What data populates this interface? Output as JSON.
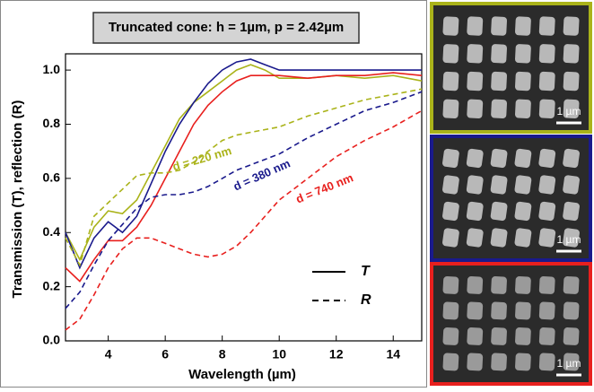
{
  "chart_data": {
    "type": "line",
    "title": "Truncated cone: h = 1µm, p = 2.42µm",
    "x_label": "Wavelength (µm)",
    "y_label": "Transmission (T), reflection (R)",
    "x": [
      2.5,
      3,
      3.5,
      4,
      4.5,
      5,
      5.5,
      6,
      6.5,
      7,
      7.5,
      8,
      8.5,
      9,
      9.5,
      10,
      11,
      12,
      13,
      14,
      15
    ],
    "series": [
      {
        "color": "#aab31a",
        "dash": "solid",
        "values": [
          0.4,
          0.3,
          0.42,
          0.48,
          0.47,
          0.52,
          0.62,
          0.72,
          0.82,
          0.88,
          0.92,
          0.96,
          1.0,
          1.02,
          1.0,
          0.97,
          0.97,
          0.98,
          0.97,
          0.98,
          0.96
        ]
      },
      {
        "color": "#1a1a8c",
        "dash": "solid",
        "values": [
          0.4,
          0.27,
          0.38,
          0.44,
          0.4,
          0.46,
          0.58,
          0.7,
          0.8,
          0.88,
          0.95,
          1.0,
          1.03,
          1.04,
          1.02,
          1.0,
          1.0,
          1.0,
          1.0,
          1.0,
          1.0
        ]
      },
      {
        "color": "#e8201e",
        "dash": "solid",
        "values": [
          0.27,
          0.22,
          0.3,
          0.37,
          0.37,
          0.42,
          0.5,
          0.6,
          0.7,
          0.8,
          0.87,
          0.92,
          0.96,
          0.98,
          0.98,
          0.98,
          0.97,
          0.98,
          0.98,
          0.99,
          0.98
        ]
      },
      {
        "color": "#aab31a",
        "dash": "dashed",
        "values": [
          0.38,
          0.28,
          0.46,
          0.51,
          0.56,
          0.61,
          0.62,
          0.62,
          0.63,
          0.66,
          0.7,
          0.74,
          0.76,
          0.77,
          0.78,
          0.79,
          0.83,
          0.86,
          0.89,
          0.91,
          0.93
        ]
      },
      {
        "color": "#1a1a8c",
        "dash": "dashed",
        "values": [
          0.12,
          0.18,
          0.28,
          0.37,
          0.43,
          0.49,
          0.53,
          0.54,
          0.54,
          0.55,
          0.57,
          0.6,
          0.63,
          0.65,
          0.67,
          0.69,
          0.75,
          0.8,
          0.85,
          0.88,
          0.92
        ]
      },
      {
        "color": "#e8201e",
        "dash": "dashed",
        "values": [
          0.04,
          0.08,
          0.17,
          0.27,
          0.34,
          0.38,
          0.38,
          0.36,
          0.34,
          0.32,
          0.31,
          0.32,
          0.35,
          0.4,
          0.46,
          0.52,
          0.6,
          0.68,
          0.74,
          0.79,
          0.85
        ]
      }
    ],
    "annotations": [
      {
        "text": "d = 220 nm",
        "color": "#aab31a"
      },
      {
        "text": "d = 380 nm",
        "color": "#1a1a8c"
      },
      {
        "text": "d = 740 nm",
        "color": "#e8201e"
      }
    ],
    "legend": [
      {
        "name": "T",
        "dash": "solid"
      },
      {
        "name": "R",
        "dash": "dashed"
      }
    ],
    "xlim": [
      2.5,
      15
    ],
    "ylim": [
      0,
      1.06
    ],
    "xticks": [
      4,
      6,
      8,
      10,
      12,
      14
    ],
    "yticks": [
      {
        "value": 0,
        "label": "0.0"
      },
      0.2,
      0.4,
      0.6,
      0.8,
      {
        "value": 1,
        "label": "1.0"
      }
    ]
  },
  "images": [
    {
      "border_color": "#aab31a",
      "scale_label": "1 µm"
    },
    {
      "border_color": "#1a1a8c",
      "scale_label": "1 µm"
    },
    {
      "border_color": "#e8201e",
      "scale_label": "1 µm"
    }
  ]
}
